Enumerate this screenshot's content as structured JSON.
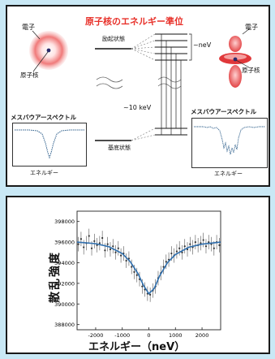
{
  "top_panel": {
    "title": "原子核のエネルギー準位",
    "left_atom": {
      "electron_label": "電子",
      "nucleus_label": "原子核"
    },
    "right_atom": {
      "electron_label": "電子",
      "nucleus_label": "原子核"
    },
    "level_labels": {
      "excited": "励起状態",
      "ground": "基底状態",
      "gap_small": "~neV",
      "gap_large": "~10 keV"
    },
    "left_spectrum": {
      "title": "メスバウアースペクトル",
      "xlabel": "エネルギー"
    },
    "right_spectrum": {
      "title": "メスバウアースペクトル",
      "xlabel": "エネルギー"
    },
    "colors": {
      "title": "#e8312a",
      "atom": "#e03a3a",
      "electron_label_line": "#222222"
    }
  },
  "chart_data": {
    "type": "scatter",
    "title": "",
    "xlabel": "エネルギー（neV）",
    "ylabel": "散乱強度",
    "xlim": [
      -2700,
      2700
    ],
    "ylim": [
      387500,
      399000
    ],
    "xticks": [
      "-2000",
      "-1000",
      "0",
      "1000",
      "2000"
    ],
    "yticks": [
      "398000",
      "396000",
      "394000",
      "392000",
      "390000",
      "388000"
    ],
    "series": [
      {
        "style": "points-with-errorbars",
        "x": [
          -2650,
          -2550,
          -2450,
          -2350,
          -2250,
          -2150,
          -2050,
          -1950,
          -1850,
          -1750,
          -1650,
          -1550,
          -1450,
          -1350,
          -1250,
          -1150,
          -1050,
          -950,
          -850,
          -750,
          -650,
          -550,
          -450,
          -350,
          -250,
          -150,
          -50,
          50,
          150,
          250,
          350,
          450,
          550,
          650,
          750,
          850,
          950,
          1050,
          1150,
          1250,
          1350,
          1450,
          1550,
          1650,
          1750,
          1850,
          1950,
          2050,
          2150,
          2250,
          2350,
          2450,
          2550,
          2650
        ],
        "y": [
          395800,
          396300,
          395500,
          395900,
          396600,
          395400,
          396100,
          395700,
          395900,
          396400,
          395200,
          395800,
          395300,
          395600,
          395000,
          395400,
          394700,
          394900,
          394200,
          394400,
          393600,
          393100,
          392800,
          392400,
          391700,
          391400,
          391000,
          390900,
          391300,
          391700,
          392500,
          393000,
          393600,
          394100,
          394300,
          394900,
          394700,
          395100,
          395400,
          395000,
          395600,
          395300,
          395800,
          395500,
          396000,
          395700,
          395900,
          396200,
          395600,
          396000,
          395800,
          395400,
          396000,
          395700
        ],
        "err": 700
      },
      {
        "style": "fit-line",
        "x": [
          -2700,
          -2000,
          -1500,
          -1000,
          -700,
          -400,
          -200,
          0,
          200,
          400,
          700,
          1000,
          1500,
          2000,
          2700
        ],
        "y": [
          396000,
          395850,
          395550,
          394900,
          394100,
          392900,
          391800,
          391000,
          391500,
          392700,
          394000,
          394800,
          395500,
          395800,
          396000
        ]
      }
    ]
  }
}
